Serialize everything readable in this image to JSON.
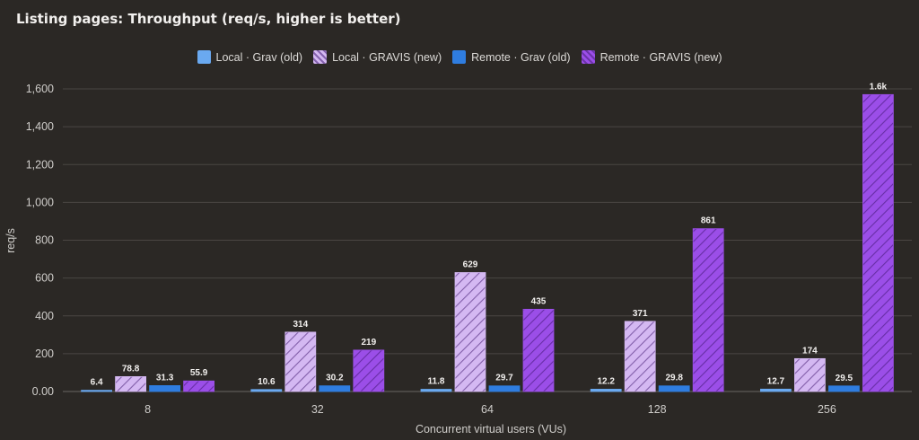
{
  "title": "Listing pages: Throughput (req/s, higher is better)",
  "chart_data": {
    "type": "bar",
    "title": "Listing pages: Throughput (req/s, higher is better)",
    "xlabel": "Concurrent virtual users (VUs)",
    "ylabel": "req/s",
    "categories": [
      "8",
      "32",
      "64",
      "128",
      "256"
    ],
    "ylim": [
      0,
      1600
    ],
    "yticks": [
      0,
      200,
      400,
      600,
      800,
      1000,
      1200,
      1400,
      1600
    ],
    "ytick_labels": [
      "0.00",
      "200",
      "400",
      "600",
      "800",
      "1,000",
      "1,200",
      "1,400",
      "1,600"
    ],
    "grid": true,
    "legend_position": "top-center",
    "series": [
      {
        "name": "Local · Grav (old)",
        "color": "#6aa9f0",
        "pattern": "solid",
        "values": [
          6.4,
          10.6,
          11.8,
          12.2,
          12.7
        ],
        "labels": [
          "6.4",
          "10.6",
          "11.8",
          "12.2",
          "12.7"
        ]
      },
      {
        "name": "Local · GRAVIS (new)",
        "color": "#d4b8f2",
        "pattern": "hatched",
        "values": [
          78.8,
          314,
          629,
          371,
          174
        ],
        "labels": [
          "78.8",
          "314",
          "629",
          "371",
          "174"
        ]
      },
      {
        "name": "Remote · Grav (old)",
        "color": "#2f7de0",
        "pattern": "solid",
        "values": [
          31.3,
          30.2,
          29.7,
          29.8,
          29.5
        ],
        "labels": [
          "31.3",
          "30.2",
          "29.7",
          "29.8",
          "29.5"
        ]
      },
      {
        "name": "Remote · GRAVIS (new)",
        "color": "#9b4ee8",
        "pattern": "hatched",
        "values": [
          55.9,
          219,
          435,
          861,
          1570
        ],
        "labels": [
          "55.9",
          "219",
          "435",
          "861",
          "1.6k"
        ]
      }
    ]
  }
}
